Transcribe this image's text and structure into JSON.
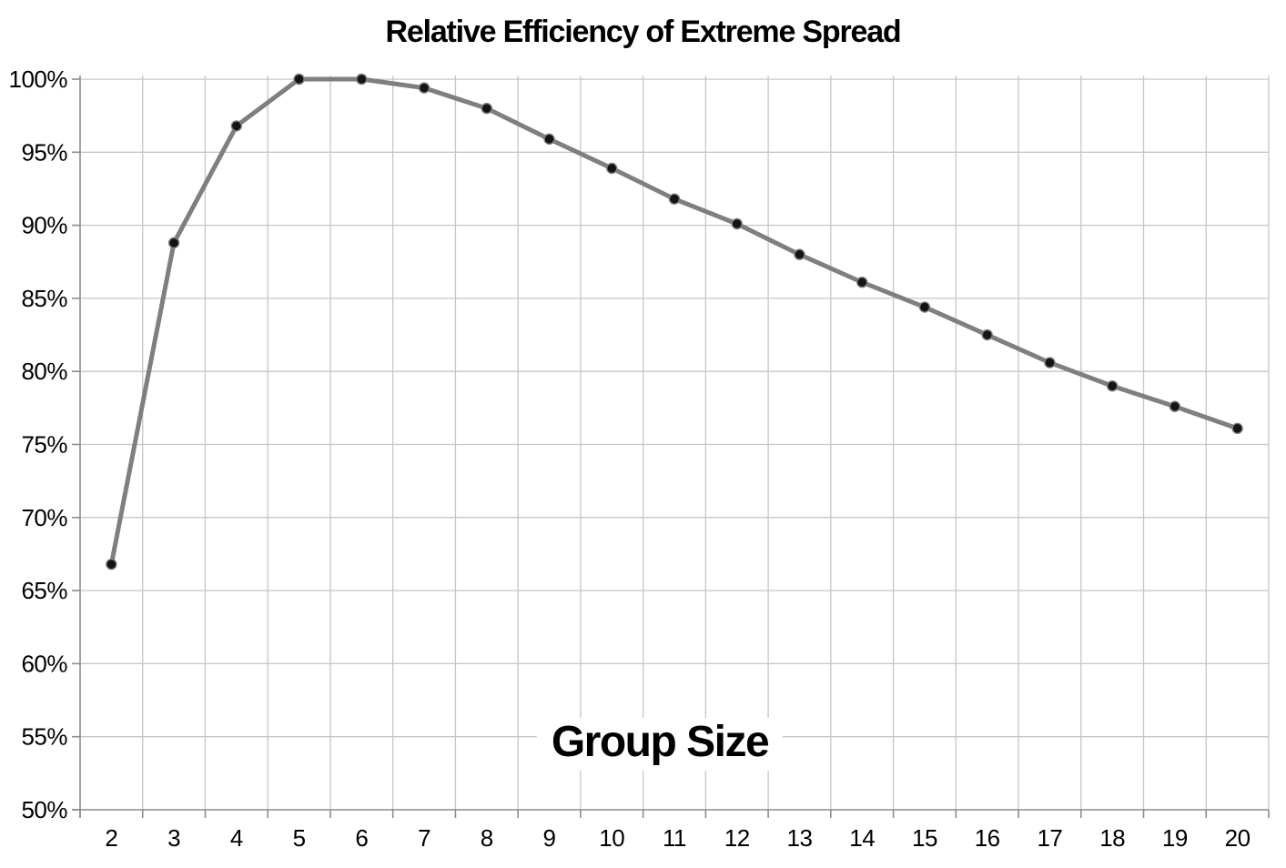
{
  "chart_data": {
    "type": "line",
    "title": "Relative Efficiency of Extreme Spread",
    "xlabel": "Group Size",
    "ylabel": "",
    "x": [
      2,
      3,
      4,
      5,
      6,
      7,
      8,
      9,
      10,
      11,
      12,
      13,
      14,
      15,
      16,
      17,
      18,
      19,
      20
    ],
    "values": [
      66.8,
      88.8,
      96.8,
      100.0,
      100.0,
      99.4,
      98.0,
      95.9,
      93.9,
      91.8,
      90.1,
      88.0,
      86.1,
      84.4,
      82.5,
      80.6,
      79.0,
      77.6,
      76.1
    ],
    "series_name": "Relative Efficiency",
    "xticks": [
      "2",
      "3",
      "4",
      "5",
      "6",
      "7",
      "8",
      "9",
      "10",
      "11",
      "12",
      "13",
      "14",
      "15",
      "16",
      "17",
      "18",
      "19",
      "20"
    ],
    "yticks": [
      "100%",
      "95%",
      "90%",
      "85%",
      "80%",
      "75%",
      "70%",
      "65%",
      "60%",
      "55%",
      "50%"
    ],
    "ylim": [
      50,
      100
    ],
    "ytick_step": 5,
    "grid": true,
    "legend_position": "none",
    "marker_shape": "circle",
    "colors": {
      "line": "#7F7F7F",
      "marker": "#141414",
      "marker_outline": "#7F7F7F",
      "gridline": "#C6C6C6",
      "axis": "#8C8C8C",
      "text": "#000000",
      "background": "#FFFFFF"
    }
  }
}
